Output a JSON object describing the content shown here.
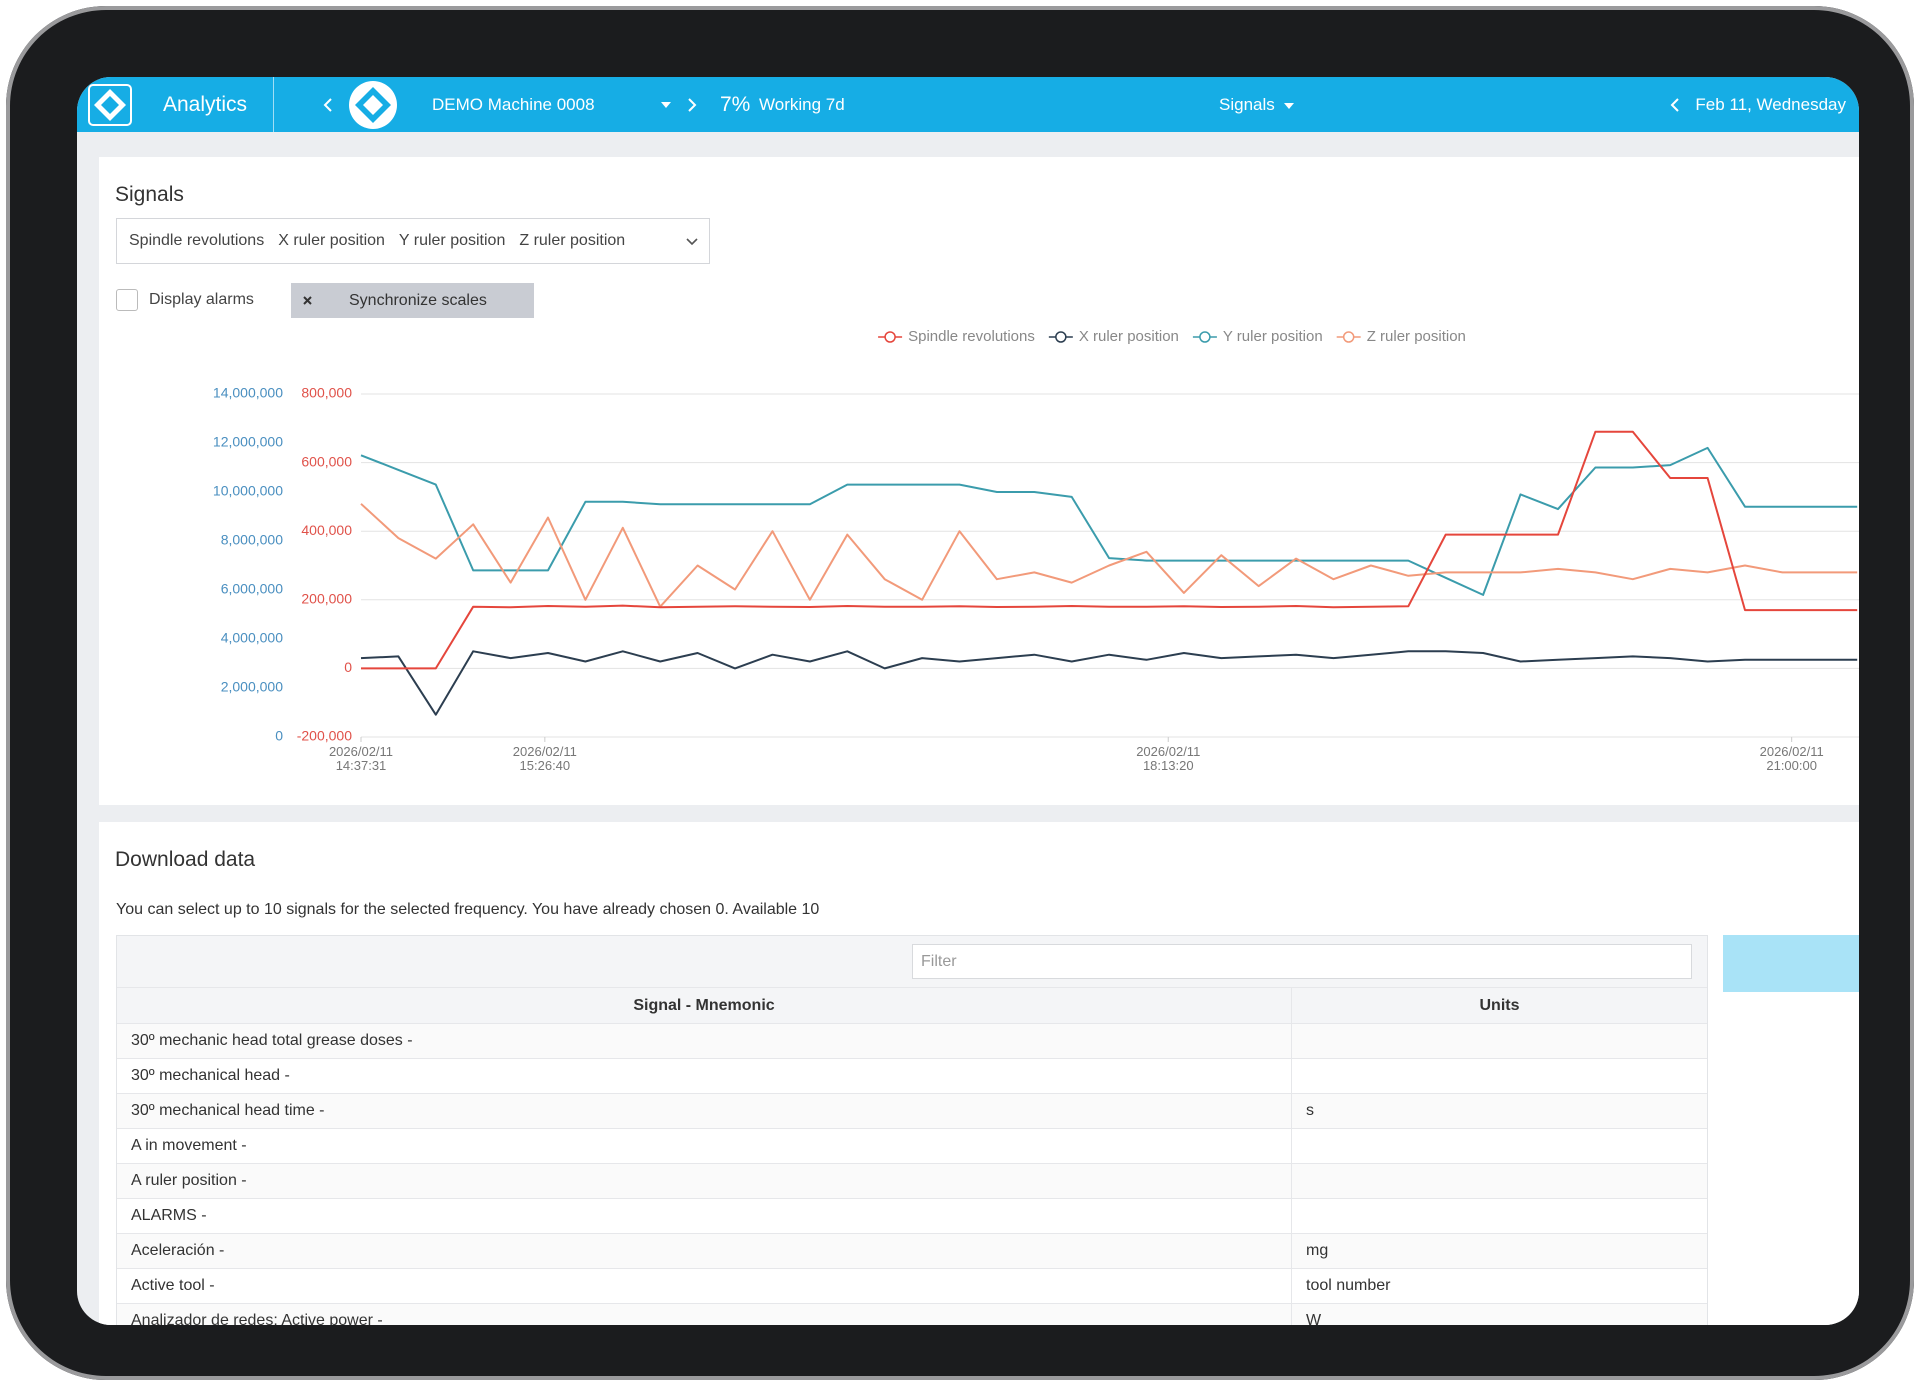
{
  "header": {
    "app_name": "Analytics",
    "machine": "DEMO Machine 0008",
    "status_percent": "7%",
    "status_text": "Working 7d",
    "menu": "Signals",
    "date": "Feb 11, Wednesday"
  },
  "signals_panel": {
    "title": "Signals",
    "display_alarms": "Display alarms",
    "synchronize_scales": "Synchronize scales"
  },
  "chart_data": {
    "type": "line",
    "x": [
      "2026/02/11 14:37:31",
      "2026/02/11 14:47:31",
      "2026/02/11 14:57:31",
      "2026/02/11 15:07:31",
      "2026/02/11 15:17:31",
      "2026/02/11 15:27:31",
      "2026/02/11 15:37:31",
      "2026/02/11 15:47:31",
      "2026/02/11 15:57:31",
      "2026/02/11 16:07:31",
      "2026/02/11 16:17:31",
      "2026/02/11 16:27:31",
      "2026/02/11 16:37:31",
      "2026/02/11 16:47:31",
      "2026/02/11 16:57:31",
      "2026/02/11 17:07:31",
      "2026/02/11 17:17:31",
      "2026/02/11 17:27:31",
      "2026/02/11 17:37:31",
      "2026/02/11 17:47:31",
      "2026/02/11 17:57:31",
      "2026/02/11 18:07:31",
      "2026/02/11 18:17:31",
      "2026/02/11 18:27:31",
      "2026/02/11 18:37:31",
      "2026/02/11 18:47:31",
      "2026/02/11 18:57:31",
      "2026/02/11 19:07:31",
      "2026/02/11 19:17:31",
      "2026/02/11 19:27:31",
      "2026/02/11 19:37:31",
      "2026/02/11 19:47:31",
      "2026/02/11 19:57:31",
      "2026/02/11 20:07:31",
      "2026/02/11 20:17:31",
      "2026/02/11 20:27:31",
      "2026/02/11 20:37:31",
      "2026/02/11 20:47:31",
      "2026/02/11 20:57:31",
      "2026/02/11 21:07:31",
      "2026/02/11 21:17:31"
    ],
    "xlim": [
      "2026/02/11 14:37:31",
      "2026/02/11 21:18:00"
    ],
    "xticks": [
      "2026/02/11 14:37:31",
      "2026/02/11 15:26:40",
      "2026/02/11 18:13:20",
      "2026/02/11 21:00:00"
    ],
    "ylim": [
      0,
      14000000
    ],
    "yticks": [
      0,
      {
        "value": 2000000,
        "label": "2,000,000"
      },
      {
        "value": 4000000,
        "label": "4,000,000"
      },
      {
        "value": 6000000,
        "label": "6,000,000"
      },
      {
        "value": 8000000,
        "label": "8,000,000"
      },
      {
        "value": 10000000,
        "label": "10,000,000"
      },
      {
        "value": 12000000,
        "label": "12,000,000"
      },
      {
        "value": 14000000,
        "label": "14,000,000"
      }
    ],
    "y_color": "#4a8fc0",
    "y2lim": [
      -200000,
      800000
    ],
    "y2ticks": [
      {
        "value": -200000,
        "label": "-200,000"
      },
      0,
      {
        "value": 200000,
        "label": "200,000"
      },
      {
        "value": 400000,
        "label": "400,000"
      },
      {
        "value": 600000,
        "label": "600,000"
      },
      {
        "value": 800000,
        "label": "800,000"
      }
    ],
    "y2_color": "#e0524a",
    "grid": true,
    "legend": "top",
    "series": [
      {
        "name": "Spindle revolutions",
        "color": "#e5463c",
        "axis": "y2",
        "values": [
          0,
          0,
          0,
          180000,
          178000,
          182000,
          180000,
          183000,
          178000,
          180000,
          181000,
          180000,
          179000,
          182000,
          180000,
          180000,
          181000,
          179000,
          180000,
          182000,
          180000,
          180000,
          181000,
          179000,
          180000,
          182000,
          178000,
          180000,
          181000,
          390000,
          390000,
          390000,
          390000,
          690000,
          690000,
          555000,
          555000,
          170000,
          170000,
          170000,
          170000
        ]
      },
      {
        "name": "X ruler position",
        "color": "#2c3e50",
        "axis": "y2",
        "values": [
          30000,
          35000,
          -135000,
          50000,
          30000,
          45000,
          20000,
          50000,
          20000,
          45000,
          0,
          40000,
          20000,
          50000,
          0,
          30000,
          20000,
          30000,
          40000,
          20000,
          40000,
          25000,
          45000,
          30000,
          35000,
          40000,
          30000,
          40000,
          50000,
          50000,
          45000,
          20000,
          25000,
          30000,
          35000,
          30000,
          20000,
          25000,
          25000,
          25000,
          25000
        ]
      },
      {
        "name": "Y ruler position",
        "color": "#3b9cac",
        "values": [
          11500000,
          10900000,
          10300000,
          6800000,
          6800000,
          6800000,
          9600000,
          9600000,
          9500000,
          9500000,
          9500000,
          9500000,
          9500000,
          10300000,
          10300000,
          10300000,
          10300000,
          10000000,
          10000000,
          9800000,
          7300000,
          7200000,
          7200000,
          7200000,
          7200000,
          7200000,
          7200000,
          7200000,
          7200000,
          6500000,
          5800000,
          9900000,
          9300000,
          11000000,
          11000000,
          11100000,
          11800000,
          9400000,
          9400000,
          9400000,
          9400000
        ]
      },
      {
        "name": "Z ruler position",
        "color": "#f29a7a",
        "axis": "y2",
        "values": [
          480000,
          380000,
          320000,
          420000,
          250000,
          440000,
          200000,
          410000,
          180000,
          300000,
          230000,
          400000,
          200000,
          390000,
          260000,
          200000,
          400000,
          260000,
          280000,
          250000,
          300000,
          340000,
          220000,
          330000,
          240000,
          320000,
          260000,
          300000,
          270000,
          280000,
          280000,
          280000,
          290000,
          280000,
          260000,
          290000,
          280000,
          300000,
          280000,
          280000,
          280000
        ]
      }
    ]
  },
  "download": {
    "title": "Download data",
    "info": "You can select up to 10 signals for the selected frequency. You have already chosen 0. Available 10",
    "filter_placeholder": "Filter",
    "table": {
      "columns": [
        "Signal - Mnemonic",
        "Units"
      ],
      "rows": [
        {
          "signal": "30º mechanic head total grease doses -"
        },
        {
          "signal": "30º mechanical head -"
        },
        {
          "signal": "30º mechanical head time -",
          "units": "s"
        },
        {
          "signal": "A in movement -"
        },
        {
          "signal": "A ruler position -"
        },
        {
          "signal": "ALARMS -"
        },
        {
          "signal": "Aceleración -",
          "units": "mg"
        },
        {
          "signal": "Active tool -",
          "units": "tool number"
        },
        {
          "signal": "Analizador de redes: Active power -",
          "units": "W"
        }
      ]
    }
  }
}
